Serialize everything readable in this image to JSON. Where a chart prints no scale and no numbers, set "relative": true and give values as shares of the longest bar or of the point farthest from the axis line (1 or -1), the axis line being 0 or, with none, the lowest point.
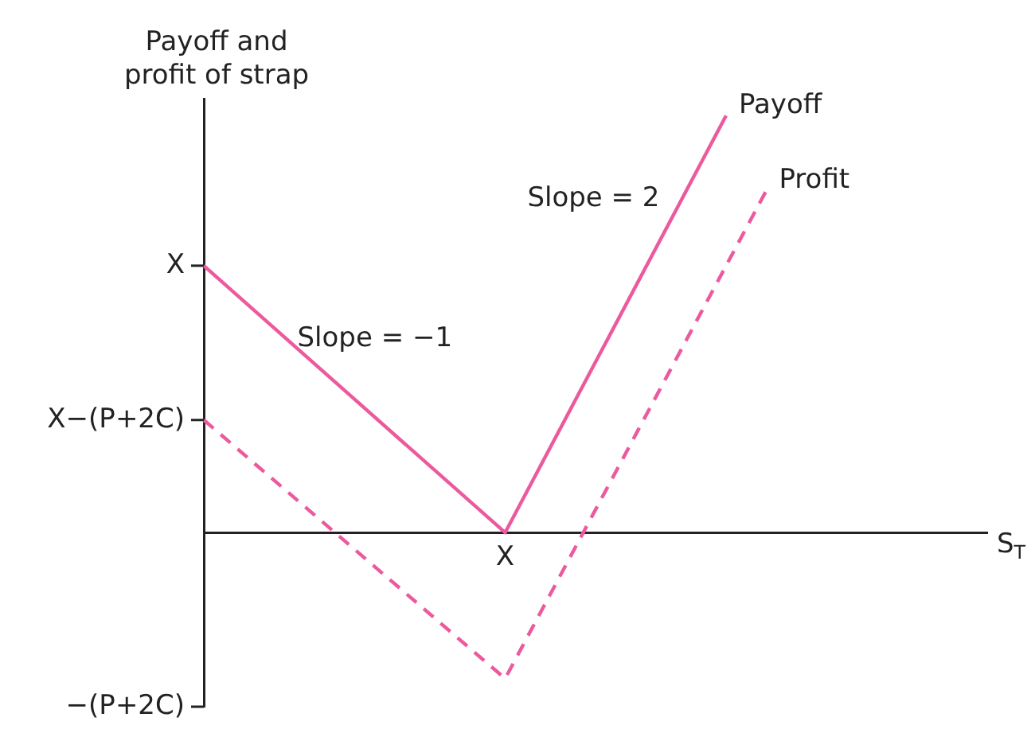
{
  "chart_data": {
    "type": "line",
    "ylabel": "Payoff and\nprofit of strap",
    "xlabel": "S$_{T}$",
    "categories": [
      null,
      null,
      null,
      null,
      null,
      null,
      null,
      null,
      null,
      null,
      null,
      null,
      null,
      null,
      null,
      null,
      null,
      null,
      null,
      null,
      null,
      null,
      null,
      null,
      null,
      null,
      null,
      null,
      null,
      null,
      null,
      null,
      null,
      null,
      null,
      null,
      null,
      null,
      null,
      null
    ],
    "series": [
      {
        "name": "Payoff",
        "color": "#ec5a9e",
        "values": [
          0.64,
          null,
          null,
          null,
          null,
          null,
          null,
          null,
          null,
          null,
          null,
          null,
          null,
          null,
          null,
          0,
          null,
          null,
          null,
          null,
          null,
          null,
          null,
          null,
          null,
          null,
          1,
          null,
          null,
          null,
          null,
          null,
          null,
          null,
          null,
          null,
          null,
          null,
          null,
          null
        ],
        "line_style": "solid"
      },
      {
        "name": "Profit",
        "color": "#ec5a9e",
        "values": [
          0.27,
          null,
          null,
          null,
          null,
          null,
          null,
          null,
          null,
          null,
          null,
          null,
          null,
          null,
          null,
          -0.35,
          null,
          null,
          null,
          null,
          null,
          null,
          null,
          null,
          null,
          null,
          null,
          null,
          0.82,
          null,
          null,
          null,
          null,
          null,
          null,
          null,
          null,
          null,
          null,
          null
        ],
        "line_style": "dashed"
      }
    ],
    "relative": true,
    "annotations": [
      "X",
      "Slope = −1",
      "Slope = 2",
      "X",
      "X−(P+2C)",
      "−(P+2C)"
    ],
    "marker": "none",
    "grid": false,
    "legend": false
  }
}
